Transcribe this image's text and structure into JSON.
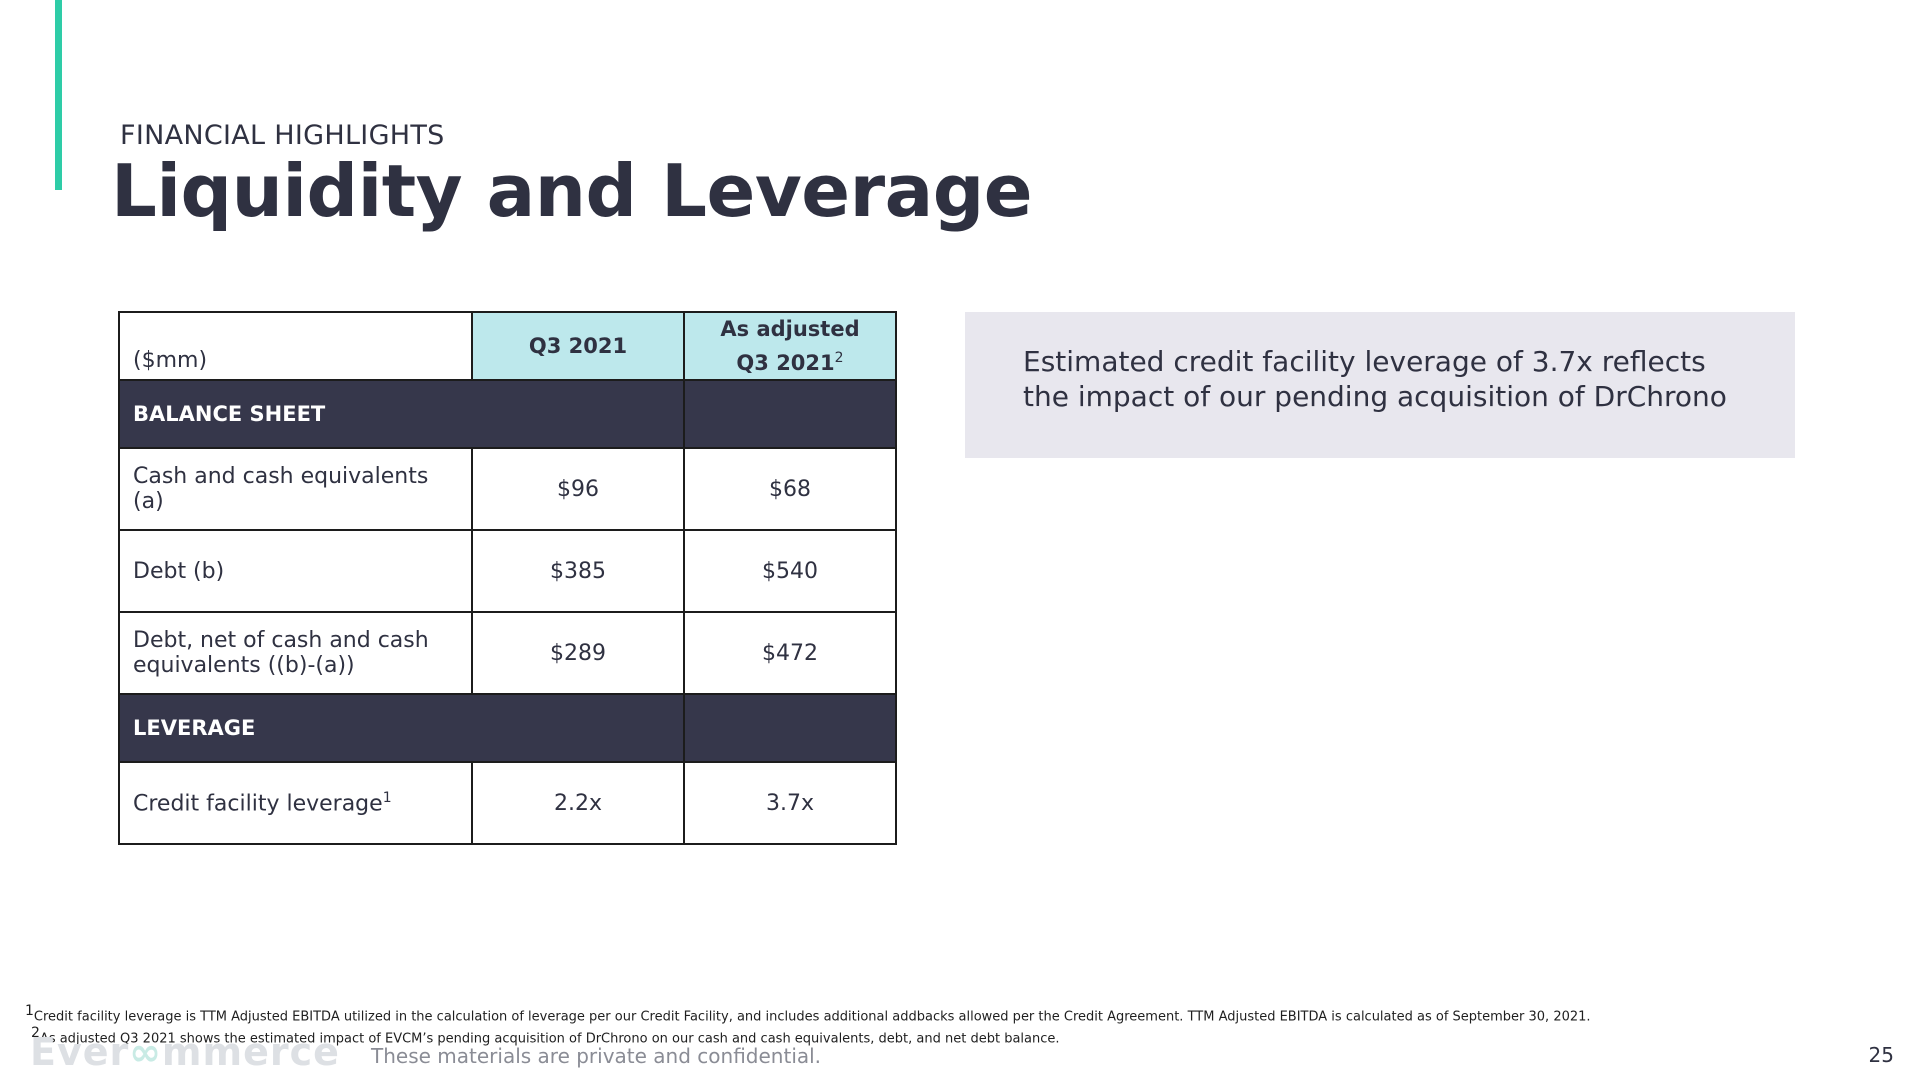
{
  "header": {
    "eyebrow": "FINANCIAL HIGHLIGHTS",
    "title": "Liquidity and Leverage"
  },
  "table": {
    "unit_label": "($mm)",
    "col_q3": "Q3 2021",
    "col_adj_line1": "As adjusted",
    "col_adj_line2": "Q3 2021",
    "col_adj_sup": "2",
    "sections": [
      {
        "label": "BALANCE SHEET"
      },
      {
        "label": "LEVERAGE"
      }
    ],
    "rows": [
      {
        "label": "Cash and cash equivalents (a)",
        "q3": "$96",
        "adj": "$68"
      },
      {
        "label": "Debt (b)",
        "q3": "$385",
        "adj": "$540"
      },
      {
        "label_line1": "Debt, net of cash and cash",
        "label_line2": "equivalents ((b)-(a))",
        "q3": "$289",
        "adj": "$472"
      },
      {
        "label": "Credit facility leverage",
        "sup": "1",
        "q3": "2.2x",
        "adj": "3.7x"
      }
    ]
  },
  "callout": {
    "text": "Estimated credit facility leverage of 3.7x reflects the impact of our pending acquisition of DrChrono"
  },
  "footer": {
    "fn1_sup": "1",
    "fn1": "Credit facility leverage is TTM Adjusted EBITDA utilized in the calculation of leverage per our Credit Facility, and includes additional addbacks allowed per the Credit Agreement. TTM Adjusted EBITDA is calculated as of September 30, 2021.",
    "fn2_sup": "2",
    "fn2": "As adjusted Q3 2021 shows the estimated impact of EVCM’s pending acquisition of DrChrono on our cash and cash equivalents, debt, and net debt balance.",
    "logo_a": "Ever",
    "logo_b": "∞",
    "logo_c": "mmerce",
    "confidential": "These materials are private and confidential.",
    "page_number": "25"
  },
  "colors": {
    "accent": "#2ecca7",
    "navy": "#36374b",
    "teal_header": "#bde8ec",
    "callout_bg": "#e8e7ee"
  }
}
